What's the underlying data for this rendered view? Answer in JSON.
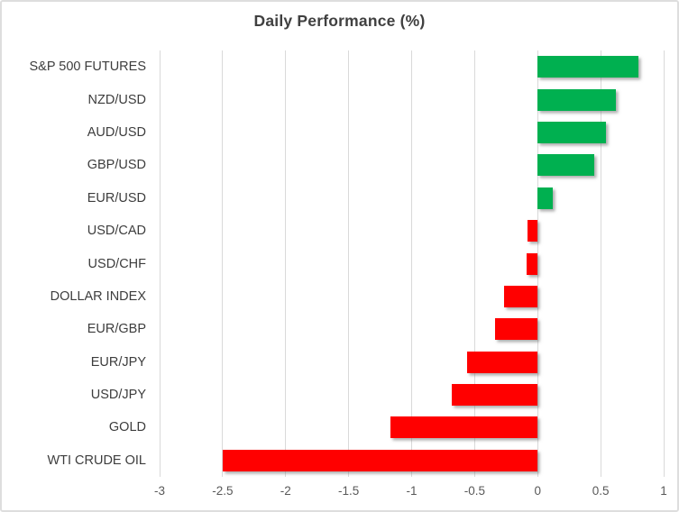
{
  "chart_data": {
    "type": "bar",
    "orientation": "horizontal",
    "title": "Daily Performance (%)",
    "categories": [
      "S&P 500 FUTURES",
      "NZD/USD",
      "AUD/USD",
      "GBP/USD",
      "EUR/USD",
      "USD/CAD",
      "USD/CHF",
      "DOLLAR INDEX",
      "EUR/GBP",
      "EUR/JPY",
      "USD/JPY",
      "GOLD",
      "WTI CRUDE OIL"
    ],
    "values": [
      0.8,
      0.62,
      0.54,
      0.45,
      0.12,
      -0.08,
      -0.09,
      -0.27,
      -0.34,
      -0.56,
      -0.68,
      -1.17,
      -2.5
    ],
    "xlabel": "",
    "ylabel": "",
    "xlim": [
      -3,
      1
    ],
    "xticks": [
      -3,
      -2.5,
      -2,
      -1.5,
      -1,
      -0.5,
      0,
      0.5,
      1
    ],
    "xtick_labels": [
      "-3",
      "-2.5",
      "-2",
      "-1.5",
      "-1",
      "-0.5",
      "0",
      "0.5",
      "1"
    ],
    "grid": "vertical-only",
    "legend": "none",
    "colors": {
      "positive_bar": "#00b050",
      "negative_bar": "#ff0000",
      "gridline": "#d9d9d9",
      "title_text": "#404040",
      "category_text": "#3d3d3d",
      "tick_text": "#595959",
      "frame_border": "#dedede",
      "background": "#ffffff"
    }
  }
}
